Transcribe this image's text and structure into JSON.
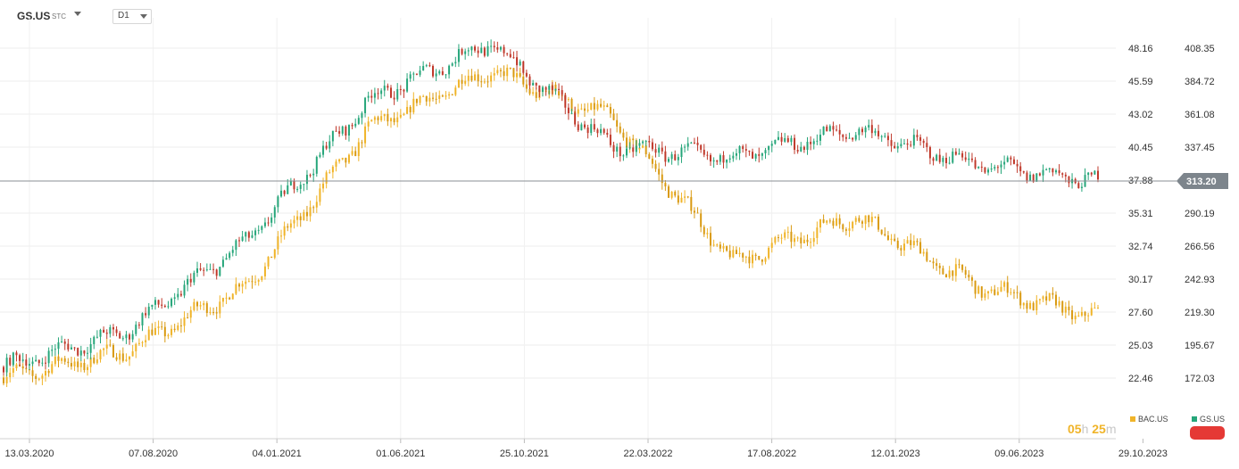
{
  "toolbar": {
    "symbol": "GS.US",
    "symbol_tag": "STC",
    "timeframe": "D1"
  },
  "countdown": {
    "hours": "05",
    "h": "h",
    "minutes": "25",
    "m": "m"
  },
  "colors": {
    "gold": "#f0b429",
    "up": "#26a67a",
    "down": "#c0392b",
    "grid": "#ececec",
    "current_line": "#8a8f94",
    "badge": "#7d858c"
  },
  "chart_data": {
    "type": "candlestick",
    "x_ticks": [
      "13.03.2020",
      "07.08.2020",
      "04.01.2021",
      "01.06.2021",
      "25.10.2021",
      "22.03.2022",
      "17.08.2022",
      "12.01.2023",
      "09.06.2023",
      "29.10.2023"
    ],
    "y_left_ticks": [
      "48.16",
      "45.59",
      "43.02",
      "40.45",
      "37.88",
      "35.31",
      "32.74",
      "30.17",
      "27.60",
      "25.03",
      "22.46"
    ],
    "y_right_ticks": [
      "408.35",
      "384.72",
      "361.08",
      "337.45",
      "313.20",
      "290.19",
      "266.56",
      "242.93",
      "219.30",
      "195.67",
      "172.03"
    ],
    "current_price": "313.20",
    "legend": [
      {
        "name": "BAC.US",
        "color": "#f0b429"
      },
      {
        "name": "GS.US",
        "color": "#26a67a"
      }
    ],
    "series": [
      {
        "name": "BAC.US",
        "axis": "left",
        "color": "#f0b429",
        "dates": [
          "13.03.2020",
          "07.08.2020",
          "04.01.2021",
          "01.06.2021",
          "25.10.2021",
          "22.03.2022",
          "17.08.2022",
          "12.01.2023",
          "09.06.2023",
          "29.10.2023"
        ],
        "values": [
          22.5,
          24.5,
          29.7,
          41.9,
          46.4,
          42.7,
          31.5,
          35.1,
          29.6,
          27.2
        ]
      },
      {
        "name": "GS.US",
        "axis": "right",
        "color": "#26a67a",
        "dates": [
          "13.03.2020",
          "07.08.2020",
          "04.01.2021",
          "01.06.2021",
          "25.10.2021",
          "22.03.2022",
          "17.08.2022",
          "12.01.2023",
          "09.06.2023",
          "29.10.2023"
        ],
        "values": [
          180,
          205,
          270,
          371,
          412,
          338,
          330,
          350,
          325,
          313
        ]
      }
    ]
  }
}
